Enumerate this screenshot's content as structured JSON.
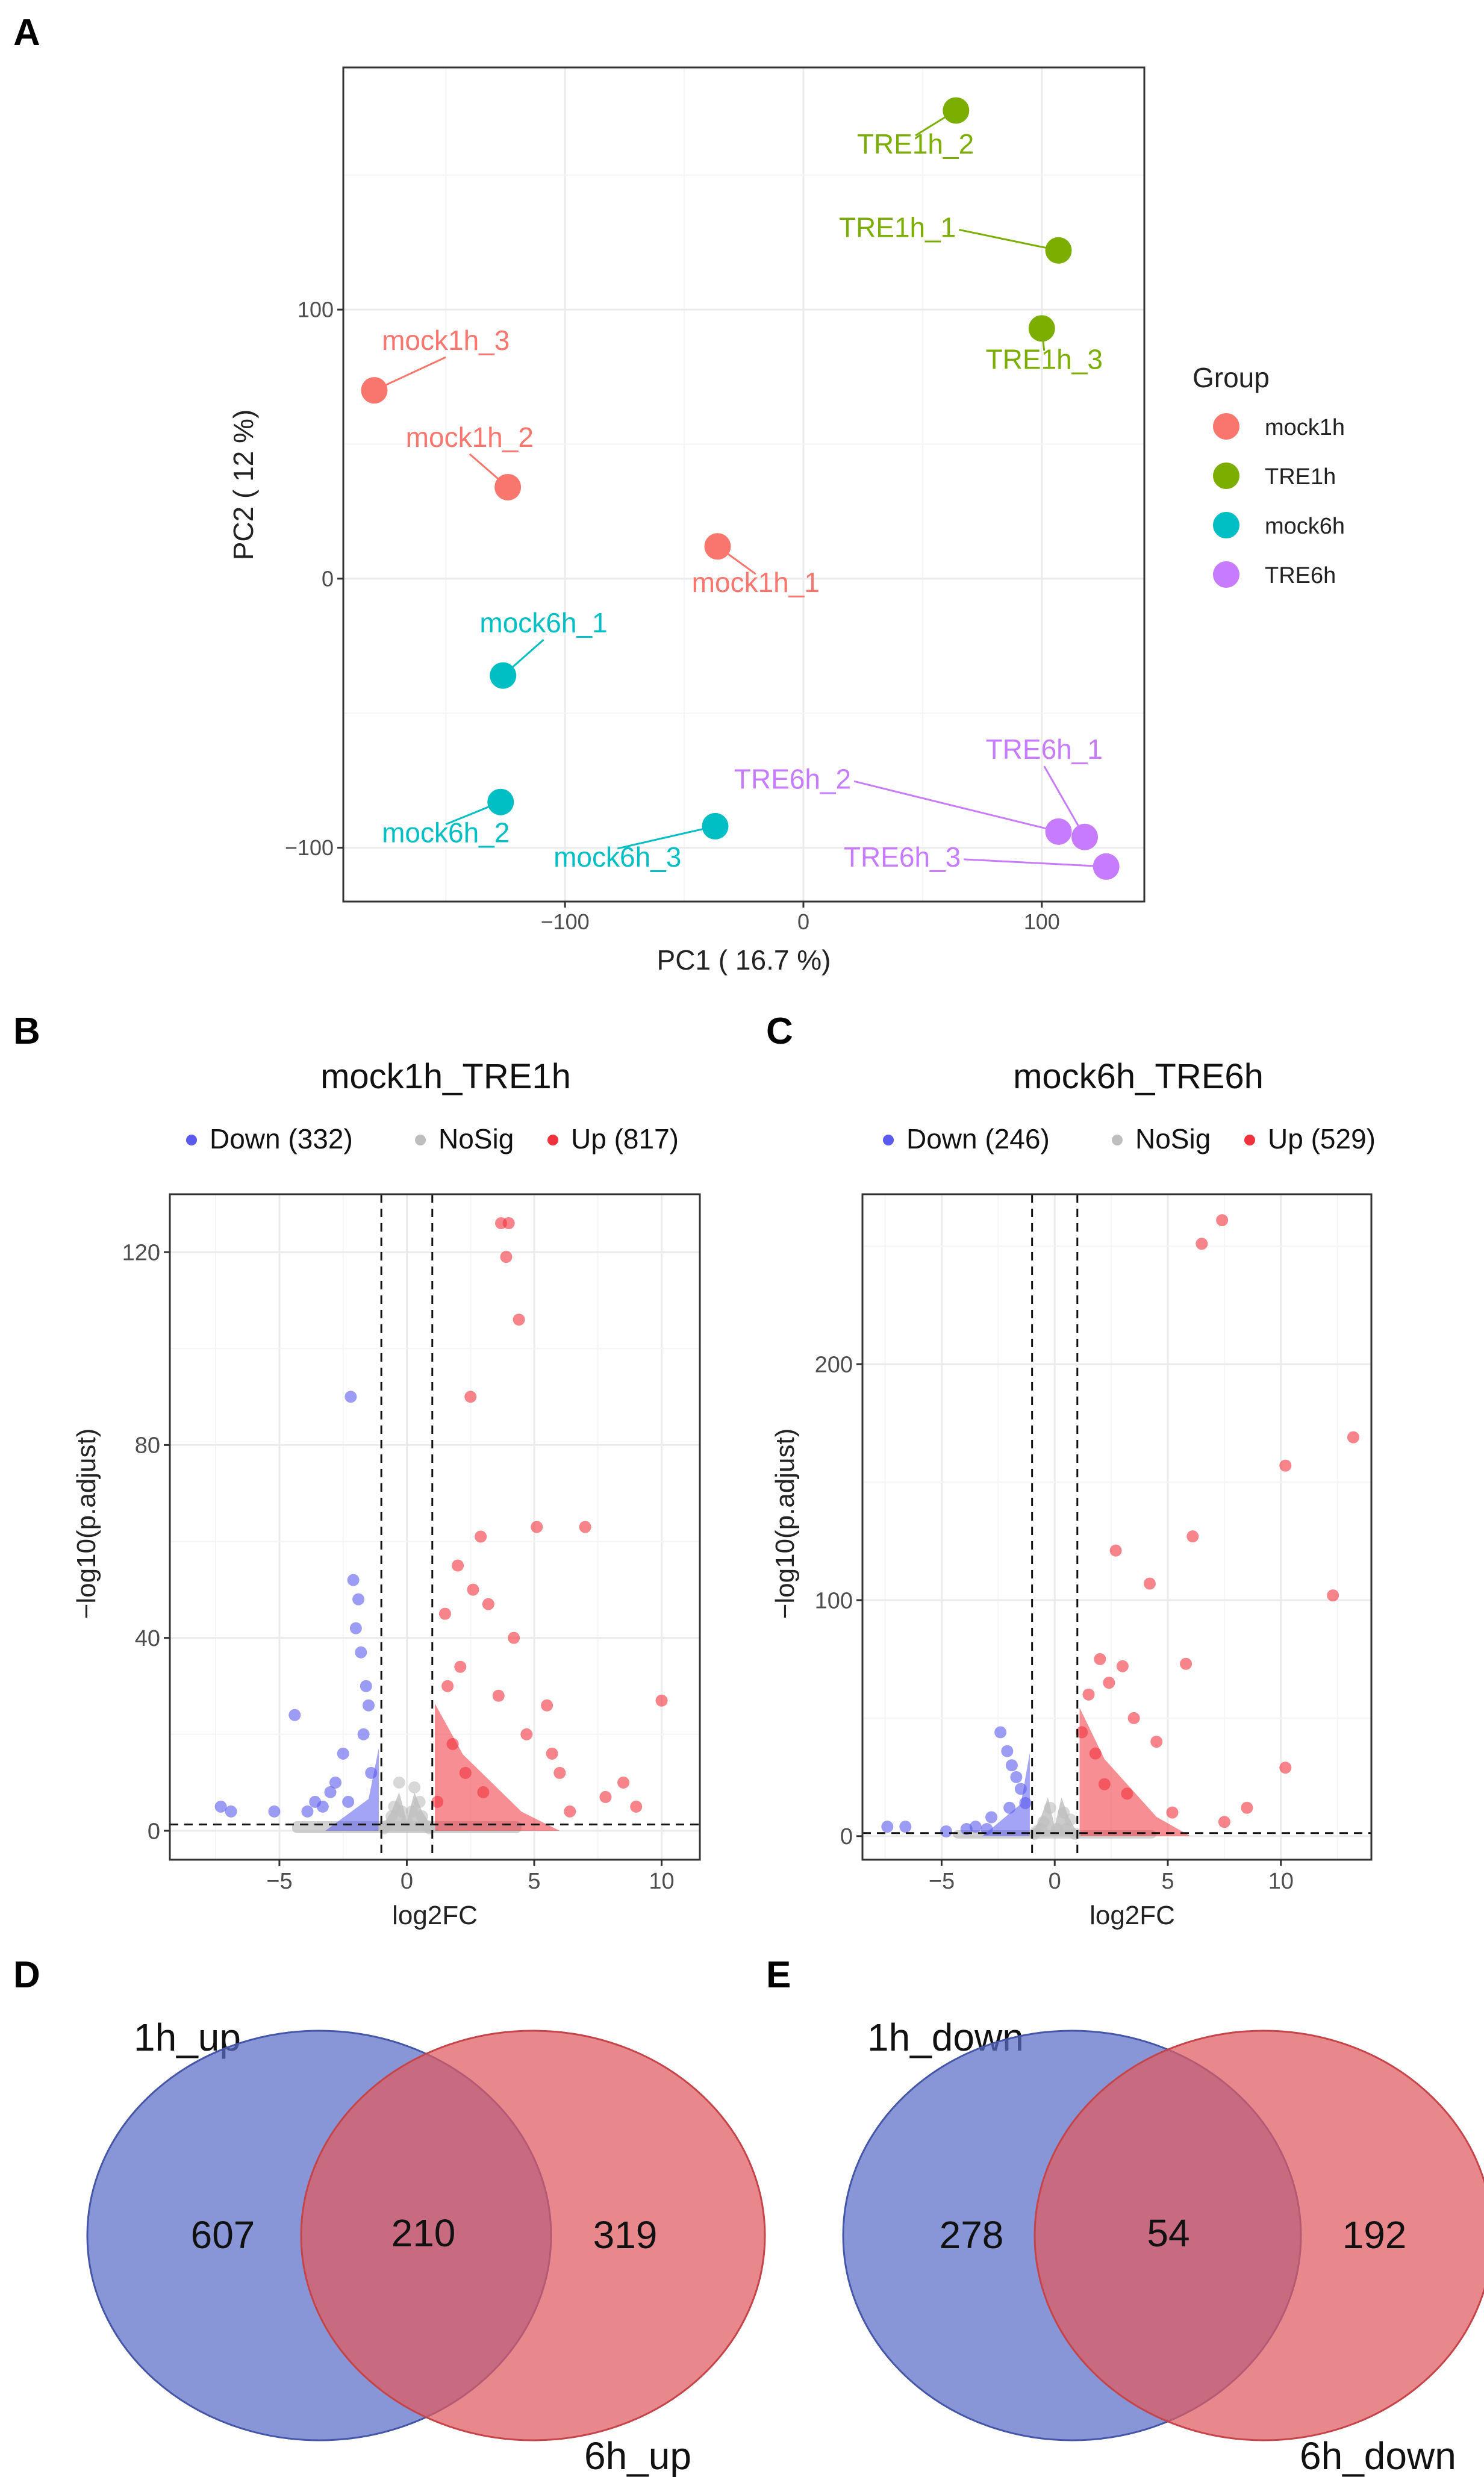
{
  "panels": {
    "A": "A",
    "B": "B",
    "C": "C",
    "D": "D",
    "E": "E"
  },
  "colors": {
    "mock1h": "#F8766D",
    "TRE1h": "#7CAE00",
    "mock6h": "#00BFC4",
    "TRE6h": "#C77CFF",
    "down": "#5A5AEE",
    "nosig": "#BEBEBE",
    "up": "#F0323C",
    "venn_blue": "#5A6EC8",
    "venn_red": "#E15A5F",
    "grid_major": "#EBEBEB",
    "grid_minor": "#F5F5F5"
  },
  "chart_data": [
    {
      "id": "A",
      "type": "scatter",
      "title": "",
      "xlabel": "PC1 ( 16.7 %)",
      "ylabel": "PC2 ( 12 %)",
      "xlim": [
        -193,
        143
      ],
      "ylim": [
        -120,
        190
      ],
      "xticks": [
        -100,
        0,
        100
      ],
      "xtick_labels": [
        "−100",
        "0",
        "100"
      ],
      "yticks": [
        -100,
        0,
        100
      ],
      "ytick_labels": [
        "−100",
        "0",
        "100"
      ],
      "legend": {
        "title": "Group",
        "position": "right",
        "entries": [
          {
            "label": "mock1h",
            "key": "mock1h"
          },
          {
            "label": "TRE1h",
            "key": "TRE1h"
          },
          {
            "label": "mock6h",
            "key": "mock6h"
          },
          {
            "label": "TRE6h",
            "key": "TRE6h"
          }
        ]
      },
      "points": [
        {
          "label": "mock1h_1",
          "group": "mock1h",
          "x": -36,
          "y": 12,
          "lx": -20,
          "ly": -5,
          "side": "below"
        },
        {
          "label": "mock1h_2",
          "group": "mock1h",
          "x": -124,
          "y": 34,
          "lx": -140,
          "ly": 49,
          "side": "above"
        },
        {
          "label": "mock1h_3",
          "group": "mock1h",
          "x": -180,
          "y": 70,
          "lx": -150,
          "ly": 85,
          "side": "above"
        },
        {
          "label": "TRE1h_1",
          "group": "TRE1h",
          "x": 107,
          "y": 122,
          "lx": 64,
          "ly": 127,
          "side": "left"
        },
        {
          "label": "TRE1h_2",
          "group": "TRE1h",
          "x": 64,
          "y": 174,
          "lx": 47,
          "ly": 158,
          "side": "below"
        },
        {
          "label": "TRE1h_3",
          "group": "TRE1h",
          "x": 100,
          "y": 93,
          "lx": 101,
          "ly": 78,
          "side": "below"
        },
        {
          "label": "mock6h_1",
          "group": "mock6h",
          "x": -126,
          "y": -36,
          "lx": -109,
          "ly": -20,
          "side": "above"
        },
        {
          "label": "mock6h_2",
          "group": "mock6h",
          "x": -127,
          "y": -83,
          "lx": -150,
          "ly": -98,
          "side": "below"
        },
        {
          "label": "mock6h_3",
          "group": "mock6h",
          "x": -37,
          "y": -92,
          "lx": -78,
          "ly": -107,
          "side": "below"
        },
        {
          "label": "TRE6h_1",
          "group": "TRE6h",
          "x": 118,
          "y": -96,
          "lx": 101,
          "ly": -67,
          "side": "above"
        },
        {
          "label": "TRE6h_2",
          "group": "TRE6h",
          "x": 107,
          "y": -94,
          "lx": 20,
          "ly": -78,
          "side": "left"
        },
        {
          "label": "TRE6h_3",
          "group": "TRE6h",
          "x": 127,
          "y": -107,
          "lx": 66,
          "ly": -107,
          "side": "left"
        }
      ]
    },
    {
      "id": "B",
      "type": "scatter",
      "title": "mock1h_TRE1h",
      "xlabel": "log2FC",
      "ylabel": "−log10(p.adjust)",
      "xlim": [
        -9.3,
        11.5
      ],
      "ylim": [
        -6,
        132
      ],
      "xticks": [
        -5,
        0,
        5,
        10
      ],
      "xtick_labels": [
        "−5",
        "0",
        "5",
        "10"
      ],
      "yticks": [
        0,
        40,
        80,
        120
      ],
      "ytick_labels": [
        "0",
        "40",
        "80",
        "120"
      ],
      "vlines": [
        -1,
        1
      ],
      "hline": 1.3,
      "legend": {
        "position": "top",
        "entries": [
          {
            "label": "Down (332)",
            "key": "down"
          },
          {
            "label": "NoSig",
            "key": "nosig"
          },
          {
            "label": "Up (817)",
            "key": "up"
          }
        ]
      },
      "series": [
        {
          "name": "Down",
          "color_key": "down",
          "x": [
            -7.3,
            -6.9,
            -5.2,
            -4.4,
            -3.9,
            -3.6,
            -3.3,
            -2.2,
            -2.1,
            -2.0,
            -1.9,
            -1.8,
            -1.6,
            -1.5,
            -2.5,
            -2.8,
            -3.0,
            -1.7,
            -1.4,
            -2.3
          ],
          "y": [
            5,
            4,
            4,
            24,
            4,
            6,
            5,
            90,
            52,
            42,
            48,
            37,
            30,
            26,
            16,
            10,
            8,
            20,
            12,
            6
          ]
        },
        {
          "name": "Up",
          "color_key": "up",
          "x": [
            3.7,
            4.0,
            3.9,
            4.4,
            2.5,
            5.1,
            7.0,
            10.0,
            2.0,
            2.9,
            2.6,
            3.2,
            4.2,
            5.5,
            6.0,
            8.5,
            7.8,
            3.6,
            4.7,
            2.1,
            1.5,
            1.8,
            2.3,
            3.0,
            1.2,
            1.6,
            5.7,
            6.4,
            9.0
          ],
          "y": [
            126,
            126,
            119,
            106,
            90,
            63,
            63,
            27,
            55,
            61,
            50,
            47,
            40,
            26,
            12,
            10,
            7,
            28,
            20,
            34,
            45,
            18,
            12,
            8,
            6,
            30,
            16,
            4,
            5
          ]
        },
        {
          "name": "NoSig",
          "color_key": "nosig",
          "x": [
            -0.8,
            -0.5,
            -0.3,
            0.0,
            0.3,
            0.5,
            0.8,
            -0.6,
            0.6,
            -0.2,
            0.2,
            -0.9,
            0.9
          ],
          "y": [
            1,
            5,
            10,
            2,
            9,
            6,
            1,
            3,
            3,
            4,
            4,
            0.5,
            0.5
          ]
        }
      ]
    },
    {
      "id": "C",
      "type": "scatter",
      "title": "mock6h_TRE6h",
      "xlabel": "log2FC",
      "ylabel": "−log10(p.adjust)",
      "xlim": [
        -8.5,
        14.0
      ],
      "ylim": [
        -10,
        272
      ],
      "xticks": [
        -5,
        0,
        5,
        10
      ],
      "xtick_labels": [
        "−5",
        "0",
        "5",
        "10"
      ],
      "yticks": [
        0,
        100,
        200
      ],
      "ytick_labels": [
        "0",
        "100",
        "200"
      ],
      "vlines": [
        -1,
        1
      ],
      "hline": 1.3,
      "legend": {
        "position": "top",
        "entries": [
          {
            "label": "Down (246)",
            "key": "down"
          },
          {
            "label": "NoSig",
            "key": "nosig"
          },
          {
            "label": "Up (529)",
            "key": "up"
          }
        ]
      },
      "series": [
        {
          "name": "Down",
          "color_key": "down",
          "x": [
            -7.4,
            -6.6,
            -4.8,
            -3.9,
            -3.0,
            -2.4,
            -2.1,
            -1.9,
            -1.7,
            -1.5,
            -1.3,
            -2.8,
            -3.5,
            -2.0
          ],
          "y": [
            4,
            4,
            2,
            3,
            3,
            44,
            36,
            30,
            25,
            20,
            14,
            8,
            4,
            12
          ]
        },
        {
          "name": "Up",
          "color_key": "up",
          "x": [
            7.4,
            6.5,
            13.2,
            10.2,
            6.1,
            12.3,
            2.7,
            4.2,
            5.8,
            10.2,
            2.0,
            3.0,
            2.4,
            1.5,
            3.5,
            4.5,
            1.8,
            2.2,
            3.2,
            5.2,
            8.5,
            7.5,
            1.2
          ],
          "y": [
            261,
            251,
            169,
            157,
            127,
            102,
            121,
            107,
            73,
            29,
            75,
            72,
            65,
            60,
            50,
            40,
            35,
            22,
            18,
            10,
            12,
            6,
            44
          ]
        },
        {
          "name": "NoSig",
          "color_key": "nosig",
          "x": [
            -0.8,
            -0.5,
            -0.2,
            0.1,
            0.4,
            0.7,
            -0.6,
            0.5,
            0.9,
            -0.9
          ],
          "y": [
            2,
            6,
            12,
            3,
            10,
            7,
            3,
            3,
            1,
            1
          ]
        }
      ]
    },
    {
      "id": "D",
      "type": "venn",
      "sets": [
        "1h_up",
        "6h_up"
      ],
      "values": {
        "only_a": 607,
        "intersection": 210,
        "only_b": 319
      }
    },
    {
      "id": "E",
      "type": "venn",
      "sets": [
        "1h_down",
        "6h_down"
      ],
      "values": {
        "only_a": 278,
        "intersection": 54,
        "only_b": 192
      }
    }
  ]
}
